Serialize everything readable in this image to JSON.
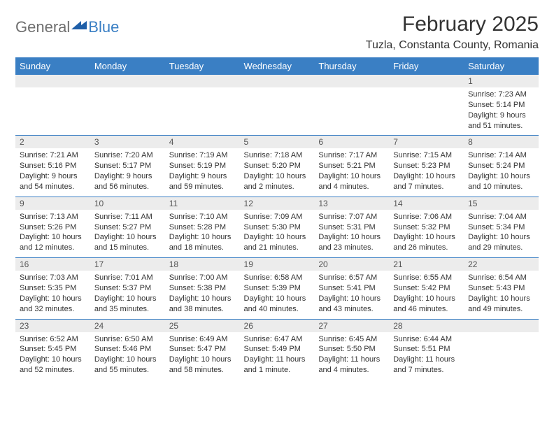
{
  "logo": {
    "general": "General",
    "blue": "Blue"
  },
  "title": "February 2025",
  "location": "Tuzla, Constanta County, Romania",
  "colors": {
    "header_bg": "#3a7fc4",
    "header_text": "#ffffff",
    "daynum_bg": "#ececec",
    "row_divider": "#3a7fc4",
    "body_text": "#333333",
    "logo_gray": "#6f6f6f",
    "logo_blue": "#3a7fc4"
  },
  "day_names": [
    "Sunday",
    "Monday",
    "Tuesday",
    "Wednesday",
    "Thursday",
    "Friday",
    "Saturday"
  ],
  "weeks": [
    [
      null,
      null,
      null,
      null,
      null,
      null,
      {
        "n": "1",
        "sr": "Sunrise: 7:23 AM",
        "ss": "Sunset: 5:14 PM",
        "dl1": "Daylight: 9 hours",
        "dl2": "and 51 minutes."
      }
    ],
    [
      {
        "n": "2",
        "sr": "Sunrise: 7:21 AM",
        "ss": "Sunset: 5:16 PM",
        "dl1": "Daylight: 9 hours",
        "dl2": "and 54 minutes."
      },
      {
        "n": "3",
        "sr": "Sunrise: 7:20 AM",
        "ss": "Sunset: 5:17 PM",
        "dl1": "Daylight: 9 hours",
        "dl2": "and 56 minutes."
      },
      {
        "n": "4",
        "sr": "Sunrise: 7:19 AM",
        "ss": "Sunset: 5:19 PM",
        "dl1": "Daylight: 9 hours",
        "dl2": "and 59 minutes."
      },
      {
        "n": "5",
        "sr": "Sunrise: 7:18 AM",
        "ss": "Sunset: 5:20 PM",
        "dl1": "Daylight: 10 hours",
        "dl2": "and 2 minutes."
      },
      {
        "n": "6",
        "sr": "Sunrise: 7:17 AM",
        "ss": "Sunset: 5:21 PM",
        "dl1": "Daylight: 10 hours",
        "dl2": "and 4 minutes."
      },
      {
        "n": "7",
        "sr": "Sunrise: 7:15 AM",
        "ss": "Sunset: 5:23 PM",
        "dl1": "Daylight: 10 hours",
        "dl2": "and 7 minutes."
      },
      {
        "n": "8",
        "sr": "Sunrise: 7:14 AM",
        "ss": "Sunset: 5:24 PM",
        "dl1": "Daylight: 10 hours",
        "dl2": "and 10 minutes."
      }
    ],
    [
      {
        "n": "9",
        "sr": "Sunrise: 7:13 AM",
        "ss": "Sunset: 5:26 PM",
        "dl1": "Daylight: 10 hours",
        "dl2": "and 12 minutes."
      },
      {
        "n": "10",
        "sr": "Sunrise: 7:11 AM",
        "ss": "Sunset: 5:27 PM",
        "dl1": "Daylight: 10 hours",
        "dl2": "and 15 minutes."
      },
      {
        "n": "11",
        "sr": "Sunrise: 7:10 AM",
        "ss": "Sunset: 5:28 PM",
        "dl1": "Daylight: 10 hours",
        "dl2": "and 18 minutes."
      },
      {
        "n": "12",
        "sr": "Sunrise: 7:09 AM",
        "ss": "Sunset: 5:30 PM",
        "dl1": "Daylight: 10 hours",
        "dl2": "and 21 minutes."
      },
      {
        "n": "13",
        "sr": "Sunrise: 7:07 AM",
        "ss": "Sunset: 5:31 PM",
        "dl1": "Daylight: 10 hours",
        "dl2": "and 23 minutes."
      },
      {
        "n": "14",
        "sr": "Sunrise: 7:06 AM",
        "ss": "Sunset: 5:32 PM",
        "dl1": "Daylight: 10 hours",
        "dl2": "and 26 minutes."
      },
      {
        "n": "15",
        "sr": "Sunrise: 7:04 AM",
        "ss": "Sunset: 5:34 PM",
        "dl1": "Daylight: 10 hours",
        "dl2": "and 29 minutes."
      }
    ],
    [
      {
        "n": "16",
        "sr": "Sunrise: 7:03 AM",
        "ss": "Sunset: 5:35 PM",
        "dl1": "Daylight: 10 hours",
        "dl2": "and 32 minutes."
      },
      {
        "n": "17",
        "sr": "Sunrise: 7:01 AM",
        "ss": "Sunset: 5:37 PM",
        "dl1": "Daylight: 10 hours",
        "dl2": "and 35 minutes."
      },
      {
        "n": "18",
        "sr": "Sunrise: 7:00 AM",
        "ss": "Sunset: 5:38 PM",
        "dl1": "Daylight: 10 hours",
        "dl2": "and 38 minutes."
      },
      {
        "n": "19",
        "sr": "Sunrise: 6:58 AM",
        "ss": "Sunset: 5:39 PM",
        "dl1": "Daylight: 10 hours",
        "dl2": "and 40 minutes."
      },
      {
        "n": "20",
        "sr": "Sunrise: 6:57 AM",
        "ss": "Sunset: 5:41 PM",
        "dl1": "Daylight: 10 hours",
        "dl2": "and 43 minutes."
      },
      {
        "n": "21",
        "sr": "Sunrise: 6:55 AM",
        "ss": "Sunset: 5:42 PM",
        "dl1": "Daylight: 10 hours",
        "dl2": "and 46 minutes."
      },
      {
        "n": "22",
        "sr": "Sunrise: 6:54 AM",
        "ss": "Sunset: 5:43 PM",
        "dl1": "Daylight: 10 hours",
        "dl2": "and 49 minutes."
      }
    ],
    [
      {
        "n": "23",
        "sr": "Sunrise: 6:52 AM",
        "ss": "Sunset: 5:45 PM",
        "dl1": "Daylight: 10 hours",
        "dl2": "and 52 minutes."
      },
      {
        "n": "24",
        "sr": "Sunrise: 6:50 AM",
        "ss": "Sunset: 5:46 PM",
        "dl1": "Daylight: 10 hours",
        "dl2": "and 55 minutes."
      },
      {
        "n": "25",
        "sr": "Sunrise: 6:49 AM",
        "ss": "Sunset: 5:47 PM",
        "dl1": "Daylight: 10 hours",
        "dl2": "and 58 minutes."
      },
      {
        "n": "26",
        "sr": "Sunrise: 6:47 AM",
        "ss": "Sunset: 5:49 PM",
        "dl1": "Daylight: 11 hours",
        "dl2": "and 1 minute."
      },
      {
        "n": "27",
        "sr": "Sunrise: 6:45 AM",
        "ss": "Sunset: 5:50 PM",
        "dl1": "Daylight: 11 hours",
        "dl2": "and 4 minutes."
      },
      {
        "n": "28",
        "sr": "Sunrise: 6:44 AM",
        "ss": "Sunset: 5:51 PM",
        "dl1": "Daylight: 11 hours",
        "dl2": "and 7 minutes."
      },
      null
    ]
  ]
}
